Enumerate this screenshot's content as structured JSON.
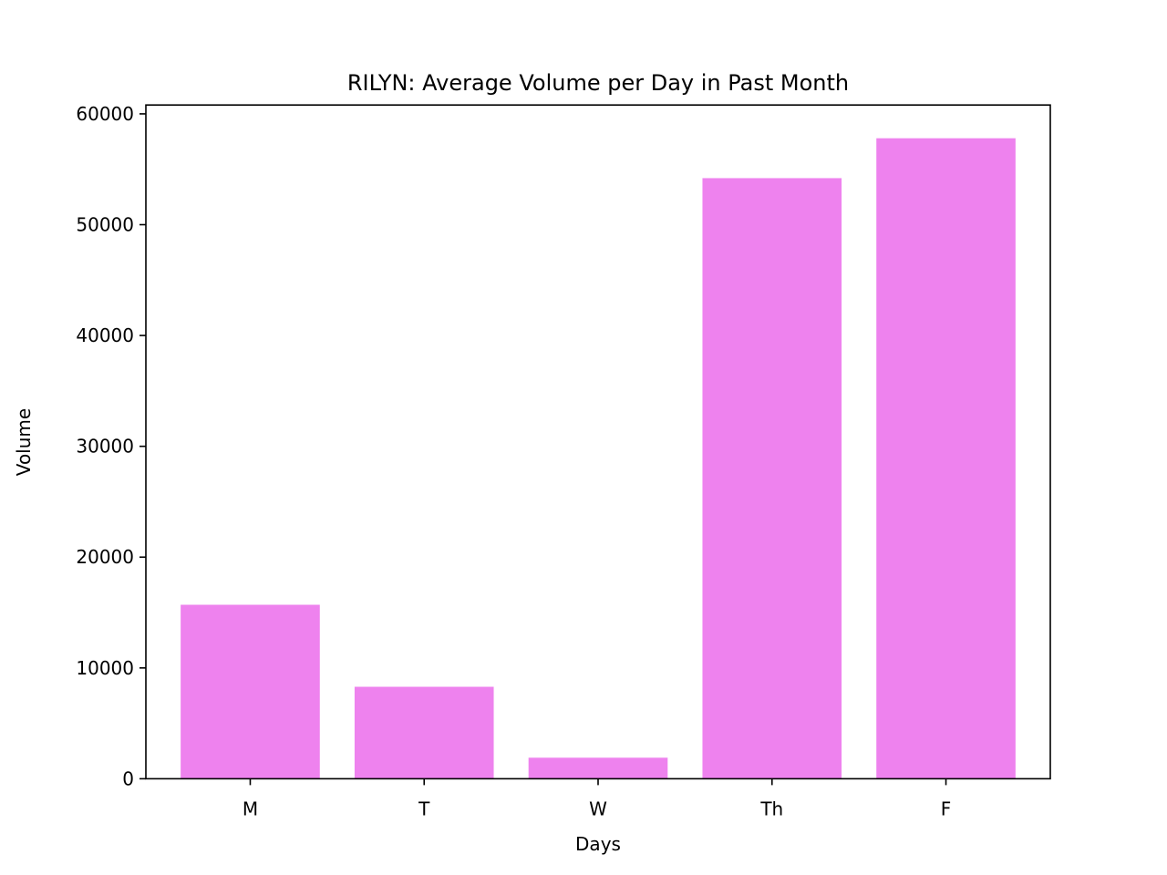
{
  "chart_data": {
    "type": "bar",
    "title": "RILYN: Average Volume per Day in Past Month",
    "xlabel": "Days",
    "ylabel": "Volume",
    "categories": [
      "M",
      "T",
      "W",
      "Th",
      "F"
    ],
    "values": [
      15700,
      8300,
      1900,
      54200,
      57800
    ],
    "ylim": [
      0,
      60800
    ],
    "yticks": [
      0,
      10000,
      20000,
      30000,
      40000,
      50000,
      60000
    ],
    "ytick_labels": [
      "0",
      "10000",
      "20000",
      "30000",
      "40000",
      "50000",
      "60000"
    ],
    "bar_color": "#ee82ee",
    "grid": false,
    "legend": "none"
  }
}
